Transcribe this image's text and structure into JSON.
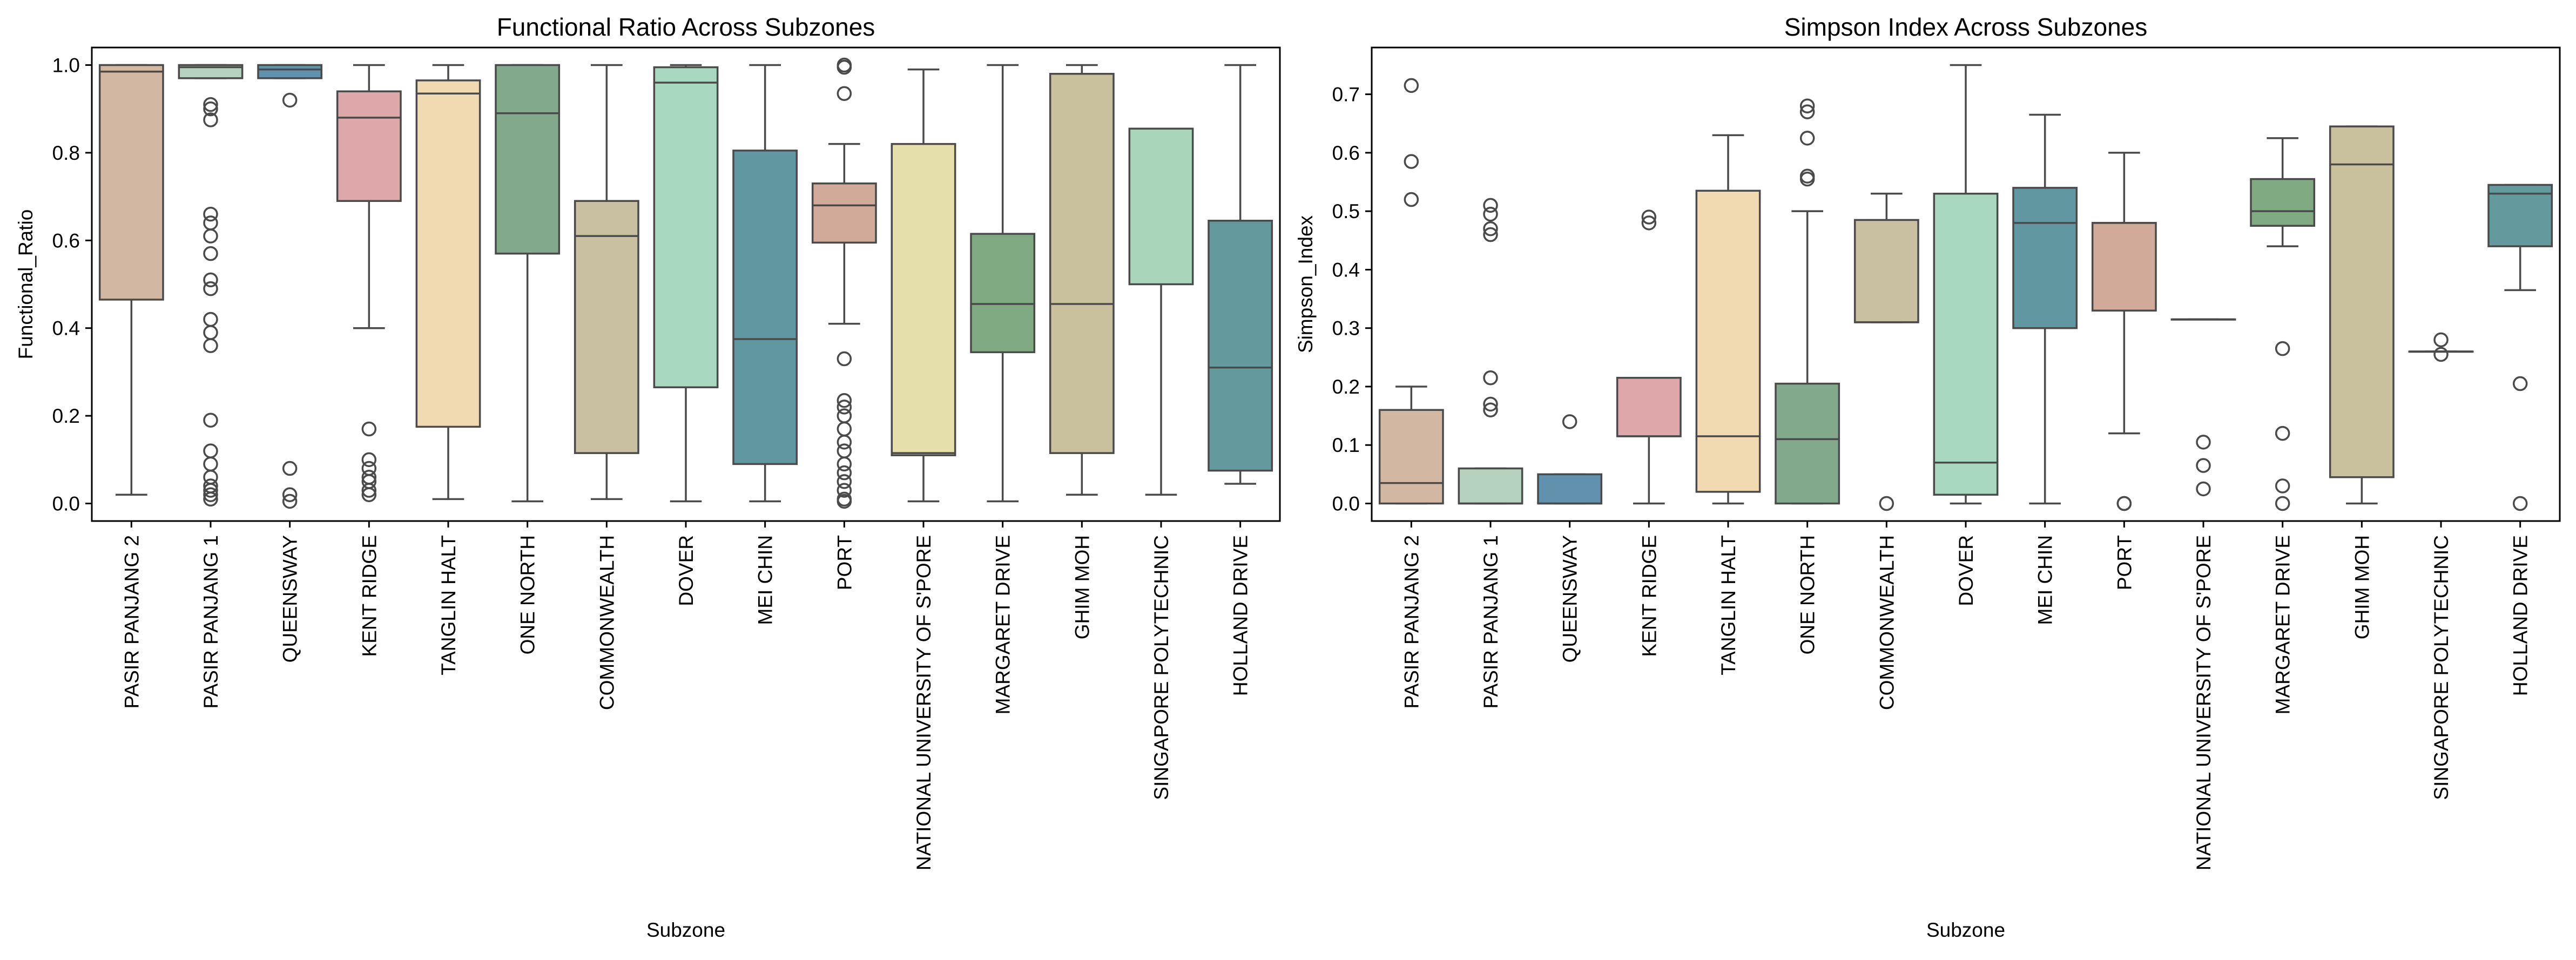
{
  "figure": {
    "colors": [
      "#d2b8a3",
      "#b4d2bd",
      "#6191ac",
      "#dea8ab",
      "#f1d9b2",
      "#82a98b",
      "#c8c0a0",
      "#a8d8bf",
      "#6097a0",
      "#d1aa9a",
      "#e5e0ab",
      "#80ab82",
      "#c9c19e",
      "#a9d5bb",
      "#64999e"
    ],
    "edge_color": "#4a4a4a"
  },
  "chart_data": [
    {
      "type": "box",
      "title": "Functional Ratio Across Subzones",
      "xlabel": "Subzone",
      "ylabel": "Functional_Ratio",
      "ylim": [
        -0.04,
        1.04
      ],
      "yticks": [
        0.0,
        0.2,
        0.4,
        0.6,
        0.8,
        1.0
      ],
      "ytick_labels": [
        "0.0",
        "0.2",
        "0.4",
        "0.6",
        "0.8",
        "1.0"
      ],
      "categories": [
        "PASIR PANJANG 2",
        "PASIR PANJANG 1",
        "QUEENSWAY",
        "KENT RIDGE",
        "TANGLIN HALT",
        "ONE NORTH",
        "COMMONWEALTH",
        "DOVER",
        "MEI CHIN",
        "PORT",
        "NATIONAL UNIVERSITY OF S'PORE",
        "MARGARET DRIVE",
        "GHIM MOH",
        "SINGAPORE POLYTECHNIC",
        "HOLLAND DRIVE"
      ],
      "boxes": [
        {
          "whislo": 0.02,
          "q1": 0.465,
          "med": 0.985,
          "q3": 1.0,
          "whishi": 1.0,
          "fliers": []
        },
        {
          "whislo": 0.97,
          "q1": 0.97,
          "med": 0.995,
          "q3": 1.0,
          "whishi": 1.0,
          "fliers": [
            0.91,
            0.9,
            0.875,
            0.66,
            0.64,
            0.61,
            0.57,
            0.51,
            0.49,
            0.42,
            0.39,
            0.36,
            0.19,
            0.12,
            0.09,
            0.06,
            0.04,
            0.03,
            0.02,
            0.01
          ]
        },
        {
          "whislo": 0.97,
          "q1": 0.97,
          "med": 0.99,
          "q3": 1.0,
          "whishi": 1.0,
          "fliers": [
            0.92,
            0.08,
            0.02,
            0.005
          ]
        },
        {
          "whislo": 0.4,
          "q1": 0.69,
          "med": 0.88,
          "q3": 0.94,
          "whishi": 1.0,
          "fliers": [
            0.17,
            0.1,
            0.08,
            0.06,
            0.05,
            0.03,
            0.02
          ]
        },
        {
          "whislo": 0.01,
          "q1": 0.175,
          "med": 0.935,
          "q3": 0.965,
          "whishi": 1.0,
          "fliers": []
        },
        {
          "whislo": 0.005,
          "q1": 0.57,
          "med": 0.89,
          "q3": 1.0,
          "whishi": 1.0,
          "fliers": []
        },
        {
          "whislo": 0.01,
          "q1": 0.115,
          "med": 0.61,
          "q3": 0.69,
          "whishi": 1.0,
          "fliers": []
        },
        {
          "whislo": 0.005,
          "q1": 0.265,
          "med": 0.96,
          "q3": 0.995,
          "whishi": 1.0,
          "fliers": []
        },
        {
          "whislo": 0.005,
          "q1": 0.09,
          "med": 0.375,
          "q3": 0.805,
          "whishi": 1.0,
          "fliers": []
        },
        {
          "whislo": 0.41,
          "q1": 0.595,
          "med": 0.68,
          "q3": 0.73,
          "whishi": 0.82,
          "fliers": [
            1.0,
            0.995,
            0.935,
            0.33,
            0.235,
            0.22,
            0.2,
            0.17,
            0.14,
            0.12,
            0.09,
            0.07,
            0.05,
            0.03,
            0.01,
            0.005
          ]
        },
        {
          "whislo": 0.005,
          "q1": 0.11,
          "med": 0.115,
          "q3": 0.82,
          "whishi": 0.99,
          "fliers": []
        },
        {
          "whislo": 0.005,
          "q1": 0.345,
          "med": 0.455,
          "q3": 0.615,
          "whishi": 1.0,
          "fliers": []
        },
        {
          "whislo": 0.02,
          "q1": 0.115,
          "med": 0.455,
          "q3": 0.98,
          "whishi": 1.0,
          "fliers": []
        },
        {
          "whislo": 0.02,
          "q1": 0.5,
          "med": 0.855,
          "q3": 0.855,
          "whishi": 0.855,
          "fliers": []
        },
        {
          "whislo": 0.045,
          "q1": 0.075,
          "med": 0.31,
          "q3": 0.645,
          "whishi": 1.0,
          "fliers": []
        }
      ]
    },
    {
      "type": "box",
      "title": "Simpson Index Across Subzones",
      "xlabel": "Subzone",
      "ylabel": "Simpson_Index",
      "ylim": [
        -0.03,
        0.78
      ],
      "yticks": [
        0.0,
        0.1,
        0.2,
        0.3,
        0.4,
        0.5,
        0.6,
        0.7
      ],
      "ytick_labels": [
        "0.0",
        "0.1",
        "0.2",
        "0.3",
        "0.4",
        "0.5",
        "0.6",
        "0.7"
      ],
      "categories": [
        "PASIR PANJANG 2",
        "PASIR PANJANG 1",
        "QUEENSWAY",
        "KENT RIDGE",
        "TANGLIN HALT",
        "ONE NORTH",
        "COMMONWEALTH",
        "DOVER",
        "MEI CHIN",
        "PORT",
        "NATIONAL UNIVERSITY OF S'PORE",
        "MARGARET DRIVE",
        "GHIM MOH",
        "SINGAPORE POLYTECHNIC",
        "HOLLAND DRIVE"
      ],
      "boxes": [
        {
          "whislo": 0.0,
          "q1": 0.0,
          "med": 0.035,
          "q3": 0.16,
          "whishi": 0.2,
          "fliers": [
            0.715,
            0.585,
            0.52
          ]
        },
        {
          "whislo": 0.0,
          "q1": 0.0,
          "med": 0.0,
          "q3": 0.06,
          "whishi": 0.06,
          "fliers": [
            0.51,
            0.495,
            0.47,
            0.46,
            0.215,
            0.17,
            0.16
          ]
        },
        {
          "whislo": 0.0,
          "q1": 0.0,
          "med": 0.0,
          "q3": 0.05,
          "whishi": 0.05,
          "fliers": [
            0.14
          ]
        },
        {
          "whislo": 0.0,
          "q1": 0.115,
          "med": 0.115,
          "q3": 0.215,
          "whishi": 0.215,
          "fliers": [
            0.49,
            0.48
          ]
        },
        {
          "whislo": 0.0,
          "q1": 0.02,
          "med": 0.115,
          "q3": 0.535,
          "whishi": 0.63,
          "fliers": []
        },
        {
          "whislo": 0.0,
          "q1": 0.0,
          "med": 0.11,
          "q3": 0.205,
          "whishi": 0.5,
          "fliers": [
            0.68,
            0.67,
            0.625,
            0.56,
            0.555
          ]
        },
        {
          "whislo": 0.31,
          "q1": 0.31,
          "med": 0.31,
          "q3": 0.485,
          "whishi": 0.53,
          "fliers": [
            0.0
          ]
        },
        {
          "whislo": 0.0,
          "q1": 0.015,
          "med": 0.07,
          "q3": 0.53,
          "whishi": 0.75,
          "fliers": []
        },
        {
          "whislo": 0.0,
          "q1": 0.3,
          "med": 0.48,
          "q3": 0.54,
          "whishi": 0.665,
          "fliers": []
        },
        {
          "whislo": 0.12,
          "q1": 0.33,
          "med": 0.48,
          "q3": 0.48,
          "whishi": 0.6,
          "fliers": [
            0.0,
            0.0
          ]
        },
        {
          "whislo": 0.315,
          "q1": 0.315,
          "med": 0.315,
          "q3": 0.315,
          "whishi": 0.315,
          "fliers": [
            0.105,
            0.065,
            0.025
          ]
        },
        {
          "whislo": 0.44,
          "q1": 0.475,
          "med": 0.5,
          "q3": 0.555,
          "whishi": 0.625,
          "fliers": [
            0.265,
            0.12,
            0.03,
            0.0
          ]
        },
        {
          "whislo": 0.0,
          "q1": 0.045,
          "med": 0.58,
          "q3": 0.645,
          "whishi": 0.645,
          "fliers": []
        },
        {
          "whislo": 0.26,
          "q1": 0.26,
          "med": 0.26,
          "q3": 0.26,
          "whishi": 0.26,
          "fliers": [
            0.28,
            0.255
          ]
        },
        {
          "whislo": 0.365,
          "q1": 0.44,
          "med": 0.53,
          "q3": 0.545,
          "whishi": 0.545,
          "fliers": [
            0.205,
            0.0
          ]
        }
      ]
    }
  ]
}
